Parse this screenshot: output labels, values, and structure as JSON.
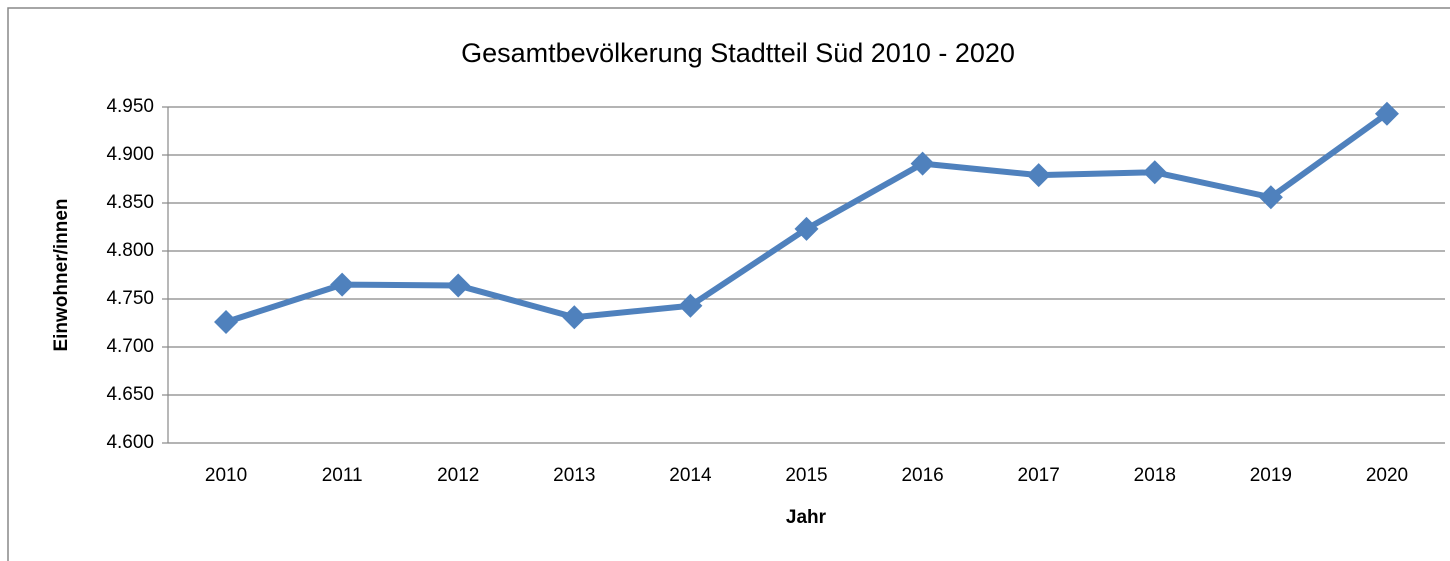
{
  "chart_data": {
    "type": "line",
    "title": "Gesamtbevölkerung Stadtteil Süd 2010 - 2020",
    "x_label": "Jahr",
    "y_label": "Einwohner/innen",
    "categories": [
      "2010",
      "2011",
      "2012",
      "2013",
      "2014",
      "2015",
      "2016",
      "2017",
      "2018",
      "2019",
      "2020"
    ],
    "series": [
      {
        "name": "Einwohner/innen",
        "color": "#4f81bd",
        "values": [
          4726,
          4765,
          4764,
          4731,
          4743,
          4823,
          4891,
          4879,
          4882,
          4856,
          4943
        ]
      }
    ],
    "ylim": [
      4600,
      4950
    ],
    "yticks": [
      {
        "value": 4600,
        "label": "4.600"
      },
      {
        "value": 4650,
        "label": "4.650"
      },
      {
        "value": 4700,
        "label": "4.700"
      },
      {
        "value": 4750,
        "label": "4.750"
      },
      {
        "value": 4800,
        "label": "4.800"
      },
      {
        "value": 4850,
        "label": "4.850"
      },
      {
        "value": 4900,
        "label": "4.900"
      },
      {
        "value": 4950,
        "label": "4.950"
      }
    ],
    "grid": true
  }
}
